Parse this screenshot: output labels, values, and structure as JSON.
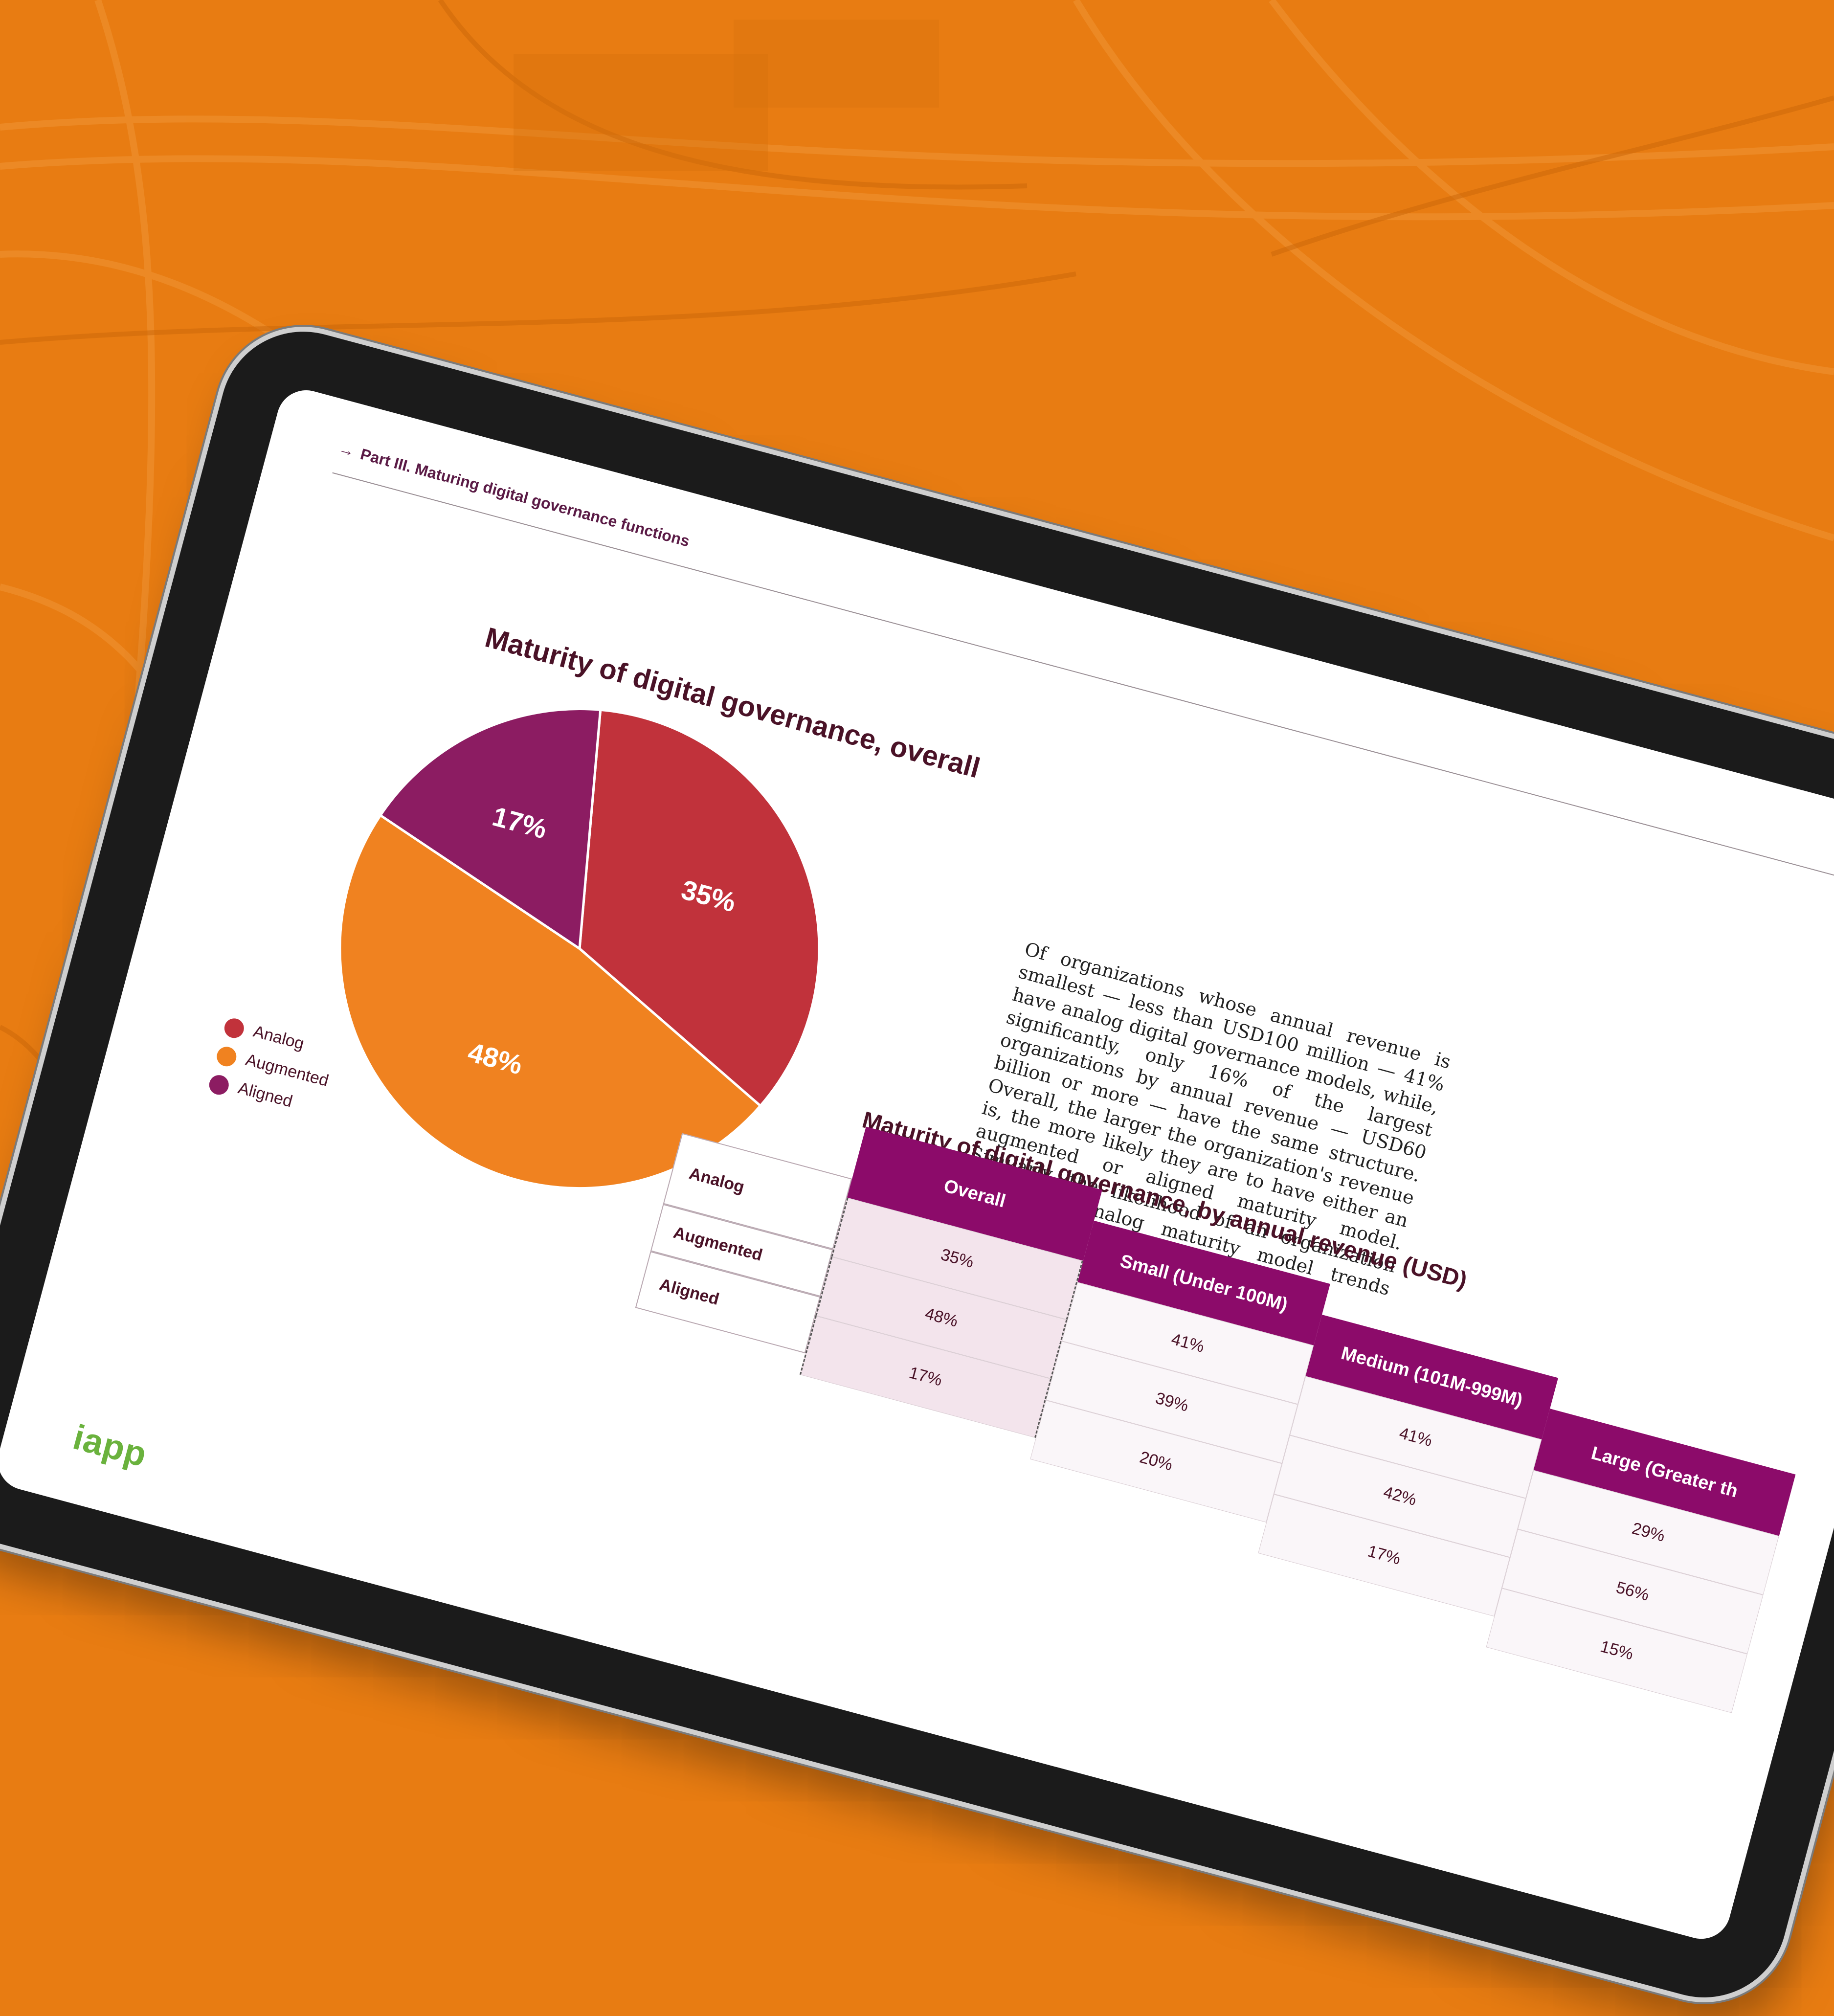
{
  "breadcrumb": {
    "arrow": "→",
    "text": "Part III. Maturing digital governance functions"
  },
  "pie": {
    "title": "Maturity of digital governance, overall",
    "legend": [
      {
        "label": "Analog",
        "color": "#c1323b"
      },
      {
        "label": "Augmented",
        "color": "#f08220"
      },
      {
        "label": "Aligned",
        "color": "#8c1c62"
      }
    ]
  },
  "paragraph": "Of organizations whose annual revenue is smallest — less than USD100 million — 41% have analog digital governance models, while, significantly, only 16% of the largest organizations by annual revenue — USD60 billion or more — have the same structure. Overall, the larger the organization's revenue is, the more likely they are to have either an augmented or aligned maturity model. Similarly, the likelihood of an organization having an analog maturity model trends downward as revenue increases.",
  "table": {
    "title": "Maturity of digital governance, by annual revenue (USD)",
    "row_labels": [
      "Analog",
      "Augmented",
      "Aligned"
    ],
    "columns": [
      {
        "header": "Overall",
        "values": [
          "35%",
          "48%",
          "17%"
        ]
      },
      {
        "header": "Small (Under 100M)",
        "values": [
          "41%",
          "39%",
          "20%"
        ]
      },
      {
        "header": "Medium (101M-999M)",
        "values": [
          "41%",
          "42%",
          "17%"
        ]
      },
      {
        "header": "Large (Greater th",
        "values": [
          "29%",
          "56%",
          "15%"
        ]
      }
    ]
  },
  "logo": "iapp",
  "chart_data": {
    "type": "pie",
    "title": "Maturity of digital governance, overall",
    "categories": [
      "Analog",
      "Augmented",
      "Aligned"
    ],
    "values": [
      35,
      48,
      17
    ],
    "labels": [
      "35%",
      "48%",
      "17%"
    ],
    "colors": [
      "#c1323b",
      "#f08220",
      "#8c1c62"
    ],
    "legend": "left"
  }
}
